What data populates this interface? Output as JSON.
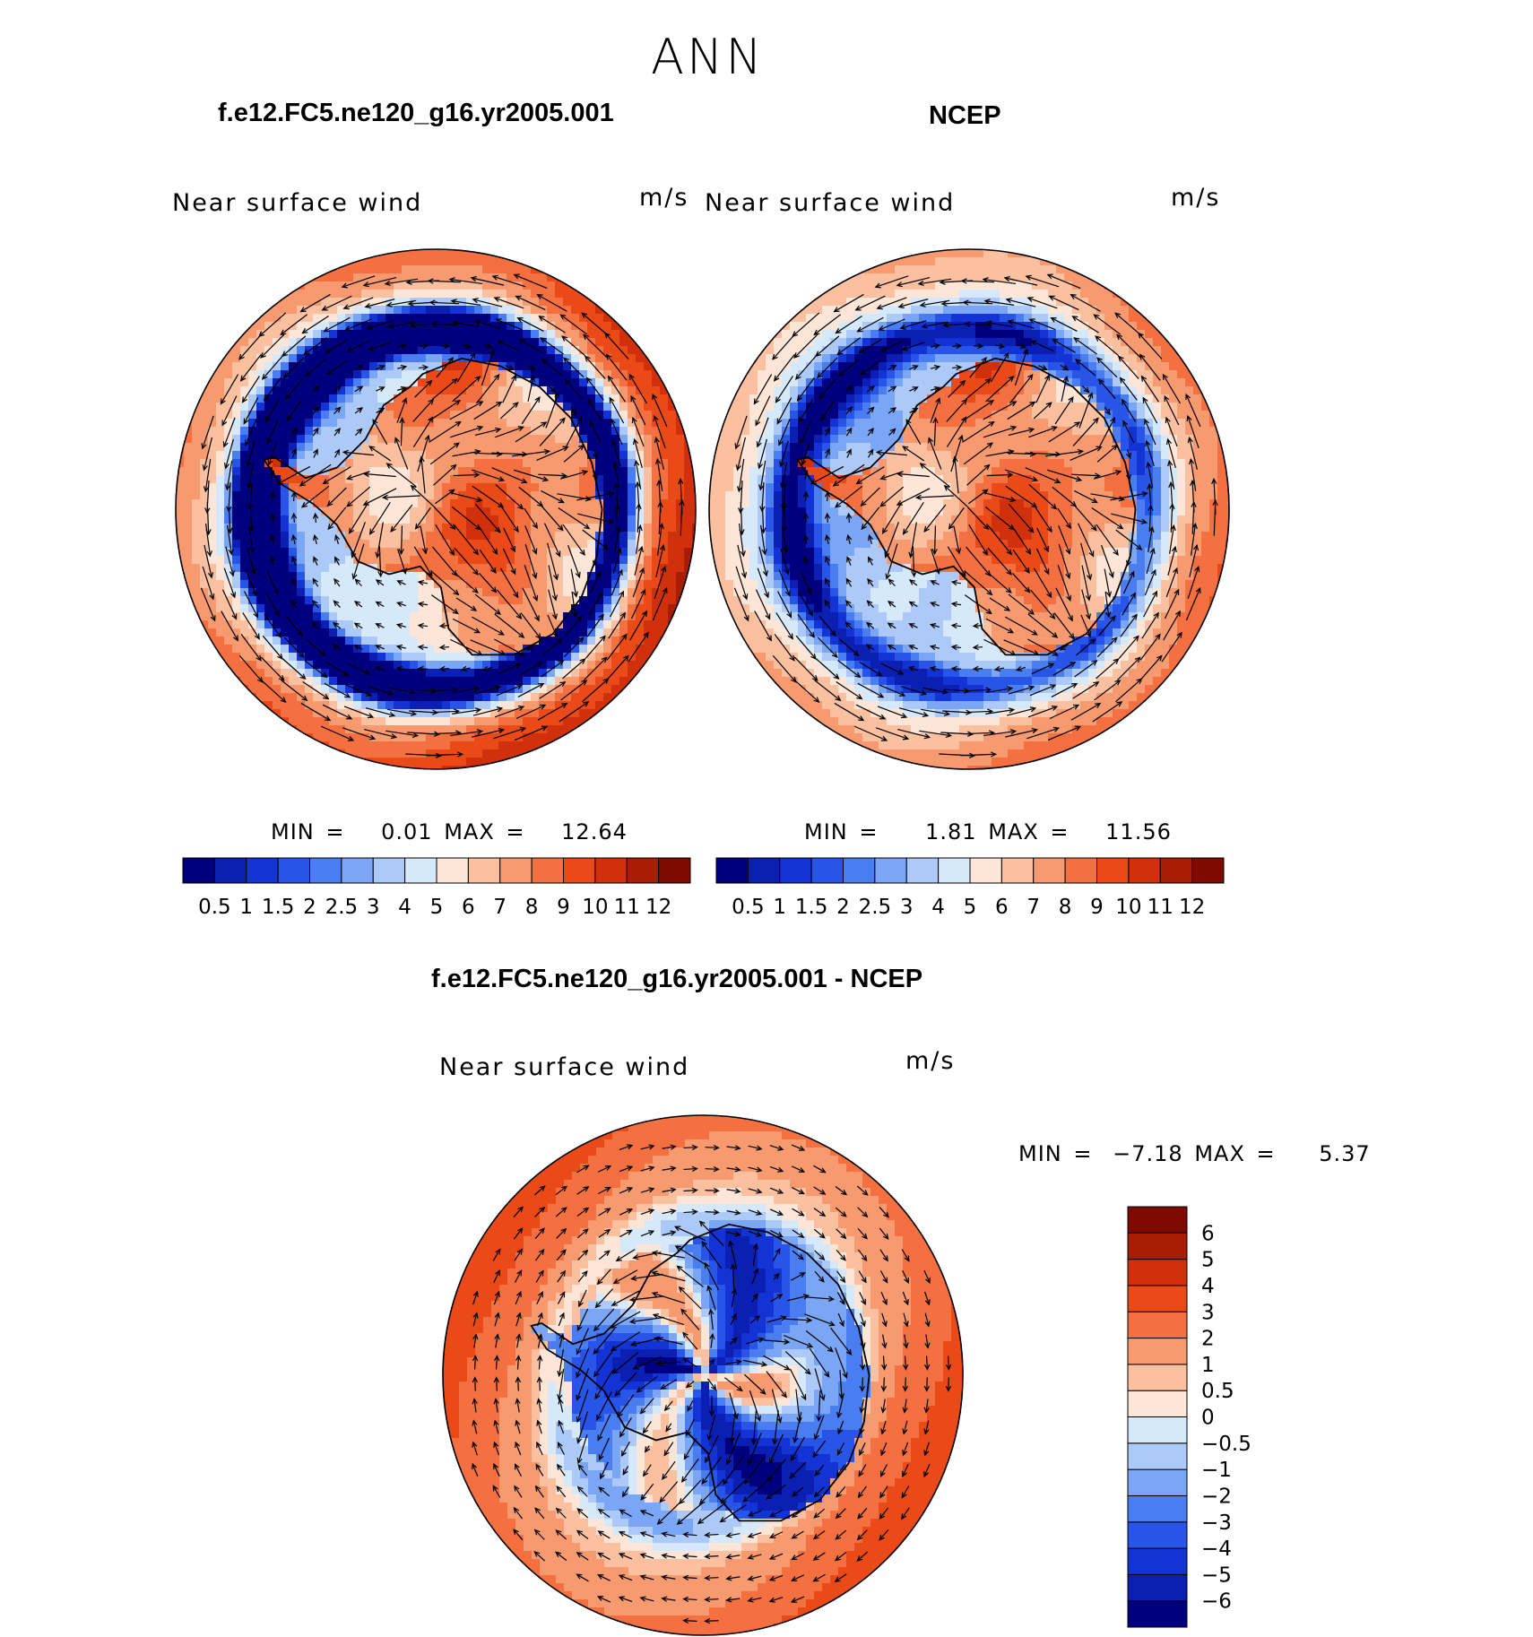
{
  "title": "ANN",
  "panels": [
    {
      "id": "model",
      "case_title": "f.e12.FC5.ne120_g16.yr2005.001",
      "variable": "Near surface wind",
      "units": "m/s",
      "stats": {
        "min_label": "MIN =",
        "min": "0.01",
        "max_label": "MAX =",
        "max": "12.64"
      },
      "pattern": {
        "base": 9.3,
        "ring_low": 1.0,
        "interior": 7.8,
        "asym": 1.6
      }
    },
    {
      "id": "ncep",
      "case_title": "NCEP",
      "variable": "Near surface wind",
      "units": "m/s",
      "stats": {
        "min_label": "MIN =",
        "min": "1.81",
        "max_label": "MAX =",
        "max": "11.56"
      },
      "pattern": {
        "base": 7.6,
        "ring_low": 3.6,
        "interior": 7.9,
        "asym": 1.1
      }
    },
    {
      "id": "diff",
      "case_title": "f.e12.FC5.ne120_g16.yr2005.001 - NCEP",
      "variable": "Near surface wind",
      "units": "m/s",
      "stats": {
        "min_label": "MIN =",
        "min": "−7.18",
        "max_label": "MAX =",
        "max": "5.37"
      }
    }
  ],
  "chart_data": [
    {
      "type": "heatmap",
      "title": "f.e12.FC5.ne120_g16.yr2005.001",
      "subtitle": "Near surface wind",
      "units": "m/s",
      "projection": "south polar stereographic",
      "min": 0.01,
      "max": 12.64,
      "colorbar": {
        "orientation": "horizontal",
        "levels": [
          0.5,
          1,
          1.5,
          2,
          2.5,
          3,
          4,
          5,
          6,
          7,
          8,
          9,
          10,
          11,
          12
        ],
        "tick_labels": [
          "0.5",
          "1",
          "1.5",
          "2",
          "2.5",
          "3",
          "4",
          "5",
          "6",
          "7",
          "8",
          "9",
          "10",
          "11",
          "12"
        ]
      }
    },
    {
      "type": "heatmap",
      "title": "NCEP",
      "subtitle": "Near surface wind",
      "units": "m/s",
      "projection": "south polar stereographic",
      "min": 1.81,
      "max": 11.56,
      "colorbar": {
        "orientation": "horizontal",
        "levels": [
          0.5,
          1,
          1.5,
          2,
          2.5,
          3,
          4,
          5,
          6,
          7,
          8,
          9,
          10,
          11,
          12
        ],
        "tick_labels": [
          "0.5",
          "1",
          "1.5",
          "2",
          "2.5",
          "3",
          "4",
          "5",
          "6",
          "7",
          "8",
          "9",
          "10",
          "11",
          "12"
        ]
      }
    },
    {
      "type": "heatmap",
      "title": "f.e12.FC5.ne120_g16.yr2005.001 - NCEP",
      "subtitle": "Near surface wind",
      "units": "m/s",
      "projection": "south polar stereographic",
      "min": -7.18,
      "max": 5.37,
      "colorbar": {
        "orientation": "vertical",
        "levels": [
          -6,
          -5,
          -4,
          -3,
          -2,
          -1,
          -0.5,
          0,
          0.5,
          1,
          2,
          3,
          4,
          5,
          6
        ],
        "tick_labels": [
          "−6",
          "−5",
          "−4",
          "−3",
          "−2",
          "−1",
          "−0.5",
          "0",
          "0.5",
          "1",
          "2",
          "3",
          "4",
          "5",
          "6"
        ]
      }
    }
  ],
  "colors": {
    "palette": [
      "#00007f",
      "#0b1fb2",
      "#1433d4",
      "#2855e8",
      "#4a7df0",
      "#7ba6f5",
      "#acc9f8",
      "#d6e9fb",
      "#fde6d7",
      "#fbc0a0",
      "#f89a70",
      "#f47041",
      "#ea4a17",
      "#d0300b",
      "#a81d06",
      "#7f0a00"
    ],
    "outline": "#000000"
  }
}
